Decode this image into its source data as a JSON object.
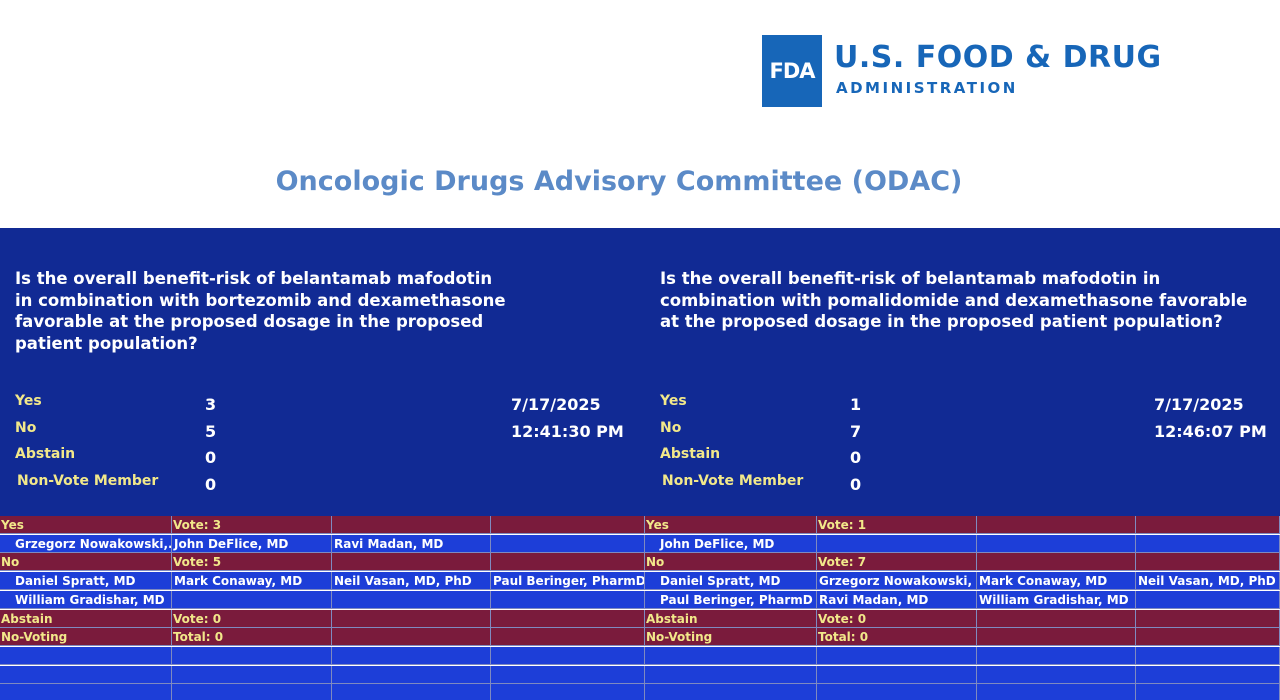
{
  "header": {
    "logo_mark": "FDA",
    "agency_line1": "U.S. FOOD & DRUG",
    "agency_line2": "ADMINISTRATION",
    "title": "Oncologic Drugs Advisory Committee (ODAC)"
  },
  "panels": [
    {
      "question": "Is the overall benefit-risk of belantamab mafodotin in combination with bortezomib and dexamethasone favorable at the proposed dosage in the proposed patient population?",
      "tallies": [
        {
          "label": "Yes",
          "count": 3
        },
        {
          "label": "No",
          "count": 5
        },
        {
          "label": "Abstain",
          "count": 0
        },
        {
          "label": "Non-Vote Member",
          "count": 0
        }
      ],
      "date": "7/17/2025",
      "time": "12:41:30 PM",
      "groups": [
        {
          "label": "Yes",
          "vote": "Vote: 3",
          "members": [
            [
              "Grzegorz Nowakowski,...",
              "John DeFlice, MD",
              "Ravi Madan, MD"
            ]
          ]
        },
        {
          "label": "No",
          "vote": "Vote: 5",
          "members": [
            [
              "Daniel Spratt, MD",
              "Mark Conaway, MD",
              "Neil Vasan, MD, PhD",
              "Paul Beringer, PharmD"
            ],
            [
              "William Gradishar, MD"
            ]
          ]
        },
        {
          "label": "Abstain",
          "vote": "Vote: 0",
          "members": []
        },
        {
          "label": "No-Voting",
          "vote": "Total: 0",
          "members": []
        }
      ]
    },
    {
      "question": "Is the overall benefit-risk of belantamab mafodotin in combination with pomalidomide and dexamethasone favorable at the proposed dosage in the proposed patient population?",
      "tallies": [
        {
          "label": "Yes",
          "count": 1
        },
        {
          "label": "No",
          "count": 7
        },
        {
          "label": "Abstain",
          "count": 0
        },
        {
          "label": "Non-Vote Member",
          "count": 0
        }
      ],
      "date": "7/17/2025",
      "time": "12:46:07 PM",
      "groups": [
        {
          "label": "Yes",
          "vote": "Vote: 1",
          "members": [
            [
              "John DeFlice, MD"
            ]
          ]
        },
        {
          "label": "No",
          "vote": "Vote: 7",
          "members": [
            [
              "Daniel Spratt, MD",
              "Grzegorz Nowakowski, ...",
              "Mark Conaway, MD",
              "Neil Vasan, MD, PhD"
            ],
            [
              "Paul Beringer, PharmD",
              "Ravi Madan, MD",
              "William Gradishar, MD"
            ]
          ]
        },
        {
          "label": "Abstain",
          "vote": "Vote: 0",
          "members": []
        },
        {
          "label": "No-Voting",
          "vote": "Total: 0",
          "members": []
        }
      ]
    }
  ]
}
